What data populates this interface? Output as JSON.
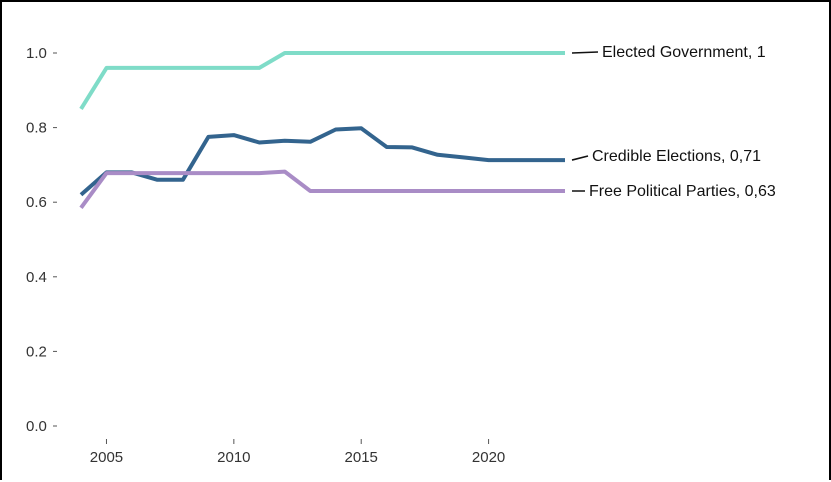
{
  "chart_data": {
    "type": "line",
    "title": "",
    "xlabel": "",
    "ylabel": "",
    "xlim": [
      2004,
      2023
    ],
    "ylim": [
      0,
      1
    ],
    "grid": false,
    "legend": "direct-labels-right",
    "x_ticks": [
      2005,
      2010,
      2015,
      2020
    ],
    "y_ticks": [
      0.0,
      0.2,
      0.4,
      0.6,
      0.8,
      1.0
    ],
    "y_tick_labels": [
      "0.0",
      "0.2",
      "0.4",
      "0.6",
      "0.8",
      "1.0"
    ],
    "x": [
      2004,
      2005,
      2006,
      2007,
      2008,
      2009,
      2010,
      2011,
      2012,
      2013,
      2014,
      2015,
      2016,
      2017,
      2018,
      2019,
      2020,
      2021,
      2022,
      2023
    ],
    "series": [
      {
        "label": "Elected Government, 1",
        "color": "#7fdcc8",
        "values": [
          0.85,
          0.96,
          0.96,
          0.96,
          0.96,
          0.96,
          0.96,
          0.96,
          1.0,
          1.0,
          1.0,
          1.0,
          1.0,
          1.0,
          1.0,
          1.0,
          1.0,
          1.0,
          1.0,
          1.0
        ]
      },
      {
        "label": "Credible Elections, 0,71",
        "color": "#33648e",
        "values": [
          0.62,
          0.68,
          0.68,
          0.66,
          0.66,
          0.775,
          0.78,
          0.76,
          0.765,
          0.762,
          0.795,
          0.798,
          0.748,
          0.747,
          0.727,
          0.72,
          0.713,
          0.713,
          0.713,
          0.713
        ]
      },
      {
        "label": "Free Political Parties, 0,63",
        "color": "#a98cc6",
        "values": [
          0.585,
          0.678,
          0.678,
          0.678,
          0.678,
          0.678,
          0.678,
          0.678,
          0.682,
          0.63,
          0.63,
          0.63,
          0.63,
          0.63,
          0.63,
          0.63,
          0.63,
          0.63,
          0.63,
          0.63
        ]
      }
    ]
  }
}
